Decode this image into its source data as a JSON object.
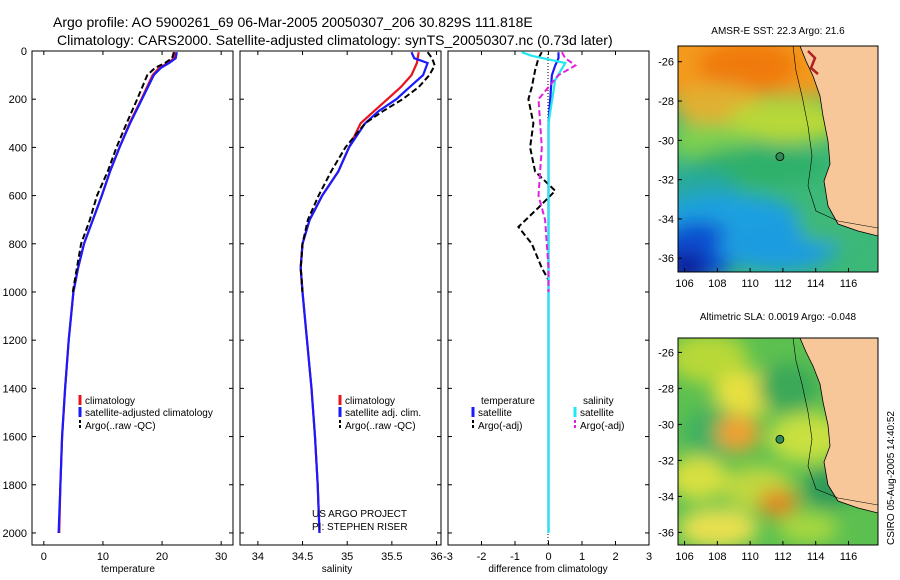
{
  "header": {
    "line1": "Argo profile: AO 5900261_69 06-Mar-2005 20050307_206 30.829S 111.818E",
    "line2": "Climatology: CARS2000. Satellite-adjusted climatology: synTS_20050307.nc (0.73d later)"
  },
  "credits": {
    "project": "US ARGO PROJECT",
    "pi": "PI: STEPHEN RISER",
    "stamp": "CSIRO 05-Aug-2005 14:40:52"
  },
  "colors": {
    "climatology": "#e8141c",
    "satellite": "#1a1aff",
    "argo": "#000000",
    "satellite_sal": "#22e8f0",
    "argo_sal": "#e020e0",
    "land": "#f7c79a",
    "float": "#2e8b57"
  },
  "chart_data": [
    {
      "type": "line",
      "name": "temperature-profile",
      "xlabel": "temperature",
      "xlim": [
        -2,
        32
      ],
      "xticks": [
        0,
        10,
        20,
        30
      ],
      "ylim": [
        2050,
        0
      ],
      "yticks": [
        0,
        200,
        400,
        600,
        800,
        1000,
        1200,
        1400,
        1600,
        1800,
        2000
      ],
      "legend": [
        "climatology",
        "satellite-adjusted climatology",
        "Argo(..raw -QC)"
      ],
      "legend_position": "lower-right",
      "series": [
        {
          "name": "climatology",
          "color": "#e8141c",
          "dash": false,
          "points": [
            [
              22.2,
              5
            ],
            [
              22.0,
              30
            ],
            [
              21.0,
              50
            ],
            [
              19.5,
              70
            ],
            [
              18.4,
              100
            ],
            [
              16.5,
              200
            ],
            [
              14.5,
              300
            ],
            [
              12.8,
              400
            ],
            [
              11.2,
              500
            ],
            [
              9.8,
              600
            ],
            [
              8.3,
              700
            ],
            [
              6.8,
              800
            ],
            [
              5.8,
              900
            ],
            [
              5.0,
              1000
            ],
            [
              4.2,
              1200
            ],
            [
              3.6,
              1400
            ],
            [
              3.1,
              1600
            ],
            [
              2.8,
              1800
            ],
            [
              2.6,
              2000
            ]
          ]
        },
        {
          "name": "satellite-adjusted climatology",
          "color": "#1a1aff",
          "dash": false,
          "points": [
            [
              22.5,
              5
            ],
            [
              22.3,
              30
            ],
            [
              21.2,
              50
            ],
            [
              19.8,
              70
            ],
            [
              18.6,
              100
            ],
            [
              16.6,
              200
            ],
            [
              14.6,
              300
            ],
            [
              12.8,
              400
            ],
            [
              11.2,
              500
            ],
            [
              9.8,
              600
            ],
            [
              8.3,
              700
            ],
            [
              6.8,
              800
            ],
            [
              5.8,
              900
            ],
            [
              5.0,
              1000
            ],
            [
              4.2,
              1200
            ],
            [
              3.6,
              1400
            ],
            [
              3.1,
              1600
            ],
            [
              2.8,
              1800
            ],
            [
              2.5,
              2000
            ]
          ]
        },
        {
          "name": "Argo(..raw -QC)",
          "color": "#000000",
          "dash": true,
          "points": [
            [
              22.0,
              5
            ],
            [
              21.7,
              30
            ],
            [
              20.5,
              50
            ],
            [
              18.8,
              70
            ],
            [
              17.5,
              100
            ],
            [
              15.8,
              200
            ],
            [
              14.0,
              300
            ],
            [
              12.3,
              400
            ],
            [
              10.8,
              500
            ],
            [
              9.0,
              600
            ],
            [
              7.8,
              700
            ],
            [
              6.3,
              800
            ],
            [
              5.6,
              900
            ],
            [
              4.9,
              1000
            ]
          ]
        }
      ]
    },
    {
      "type": "line",
      "name": "salinity-profile",
      "xlabel": "salinity",
      "xlim": [
        33.8,
        36.05
      ],
      "xticks": [
        34,
        34.5,
        35,
        35.5,
        36
      ],
      "ylim": [
        2050,
        0
      ],
      "legend": [
        "climatology",
        "satellite adj. clim.",
        "Argo(..raw -QC)"
      ],
      "legend_position": "lower-right",
      "series": [
        {
          "name": "climatology",
          "color": "#e8141c",
          "dash": false,
          "points": [
            [
              35.8,
              5
            ],
            [
              35.78,
              50
            ],
            [
              35.72,
              100
            ],
            [
              35.6,
              150
            ],
            [
              35.45,
              200
            ],
            [
              35.3,
              250
            ],
            [
              35.15,
              300
            ],
            [
              35.02,
              400
            ],
            [
              34.9,
              500
            ],
            [
              34.72,
              600
            ],
            [
              34.58,
              700
            ],
            [
              34.5,
              800
            ],
            [
              34.48,
              900
            ],
            [
              34.5,
              1000
            ],
            [
              34.55,
              1200
            ],
            [
              34.6,
              1400
            ],
            [
              34.64,
              1600
            ],
            [
              34.67,
              1800
            ],
            [
              34.69,
              2000
            ]
          ]
        },
        {
          "name": "satellite adj. clim.",
          "color": "#1a1aff",
          "dash": false,
          "points": [
            [
              35.72,
              5
            ],
            [
              35.75,
              30
            ],
            [
              35.9,
              50
            ],
            [
              35.85,
              100
            ],
            [
              35.7,
              150
            ],
            [
              35.55,
              200
            ],
            [
              35.35,
              250
            ],
            [
              35.2,
              300
            ],
            [
              35.02,
              400
            ],
            [
              34.9,
              500
            ],
            [
              34.72,
              600
            ],
            [
              34.58,
              700
            ],
            [
              34.5,
              800
            ],
            [
              34.48,
              900
            ],
            [
              34.5,
              1000
            ],
            [
              34.55,
              1200
            ],
            [
              34.6,
              1400
            ],
            [
              34.64,
              1600
            ],
            [
              34.67,
              1800
            ],
            [
              34.69,
              2000
            ]
          ]
        },
        {
          "name": "Argo(..raw -QC)",
          "color": "#000000",
          "dash": true,
          "points": [
            [
              35.9,
              5
            ],
            [
              35.95,
              30
            ],
            [
              35.98,
              60
            ],
            [
              35.92,
              100
            ],
            [
              35.8,
              150
            ],
            [
              35.62,
              200
            ],
            [
              35.4,
              250
            ],
            [
              35.2,
              300
            ],
            [
              34.98,
              400
            ],
            [
              34.82,
              500
            ],
            [
              34.68,
              600
            ],
            [
              34.56,
              700
            ],
            [
              34.5,
              800
            ],
            [
              34.48,
              900
            ],
            [
              34.5,
              1000
            ]
          ]
        }
      ]
    },
    {
      "type": "line",
      "name": "difference-profile",
      "xlabel": "difference from climatology",
      "xlim": [
        -3,
        3
      ],
      "xticks": [
        -3,
        -2,
        -1,
        0,
        1,
        2,
        3
      ],
      "ylim": [
        2050,
        0
      ],
      "legend_left_title": "temperature",
      "legend_right_title": "salinity",
      "legend_left": [
        "satellite",
        "Argo(-adj)"
      ],
      "legend_right": [
        "satellite",
        "Argo(-adj)"
      ],
      "legend_position": "lower-middle",
      "series": [
        {
          "name": "temperature satellite",
          "color": "#1a1aff",
          "dash": false,
          "points": [
            [
              0.3,
              5
            ],
            [
              0.3,
              30
            ],
            [
              0.2,
              60
            ],
            [
              0.1,
              100
            ],
            [
              0.05,
              200
            ],
            [
              0,
              300
            ],
            [
              0,
              500
            ],
            [
              0,
              1000
            ],
            [
              0,
              1500
            ],
            [
              0,
              2000
            ]
          ]
        },
        {
          "name": "temperature Argo(-adj)",
          "color": "#000000",
          "dash": true,
          "points": [
            [
              -0.2,
              5
            ],
            [
              -0.3,
              30
            ],
            [
              -0.4,
              80
            ],
            [
              -0.5,
              150
            ],
            [
              -0.6,
              200
            ],
            [
              -0.45,
              300
            ],
            [
              -0.55,
              400
            ],
            [
              -0.4,
              500
            ],
            [
              0.2,
              580
            ],
            [
              -0.3,
              650
            ],
            [
              -0.9,
              730
            ],
            [
              -0.5,
              800
            ],
            [
              -0.2,
              900
            ],
            [
              0,
              950
            ]
          ]
        },
        {
          "name": "salinity satellite",
          "color": "#22e8f0",
          "dash": false,
          "points": [
            [
              -0.8,
              5
            ],
            [
              -0.5,
              20
            ],
            [
              0.5,
              50
            ],
            [
              0.2,
              120
            ],
            [
              0,
              300
            ],
            [
              0,
              1000
            ],
            [
              0,
              2000
            ]
          ]
        },
        {
          "name": "salinity Argo(-adj)",
          "color": "#e020e0",
          "dash": true,
          "points": [
            [
              0.4,
              5
            ],
            [
              0.5,
              30
            ],
            [
              0.8,
              60
            ],
            [
              0.3,
              100
            ],
            [
              -0.3,
              200
            ],
            [
              -0.2,
              400
            ],
            [
              -0.3,
              600
            ],
            [
              -0.1,
              700
            ],
            [
              0,
              900
            ],
            [
              0,
              1000
            ]
          ]
        }
      ]
    }
  ],
  "maps": [
    {
      "title": "AMSR-E SST: 22.3 Argo: 21.6",
      "xticks": [
        "106",
        "108",
        "110",
        "112",
        "114",
        "116"
      ],
      "yticks": [
        "-26",
        "-28",
        "-30",
        "-32",
        "-34",
        "-36"
      ],
      "float_lon": 111.818,
      "float_lat": -30.829
    },
    {
      "title": "Altimetric SLA: 0.0019 Argo: -0.048",
      "xticks": [
        "106",
        "108",
        "110",
        "112",
        "114",
        "116"
      ],
      "yticks": [
        "-26",
        "-28",
        "-30",
        "-32",
        "-34",
        "-36"
      ],
      "float_lon": 111.818,
      "float_lat": -30.829
    }
  ]
}
